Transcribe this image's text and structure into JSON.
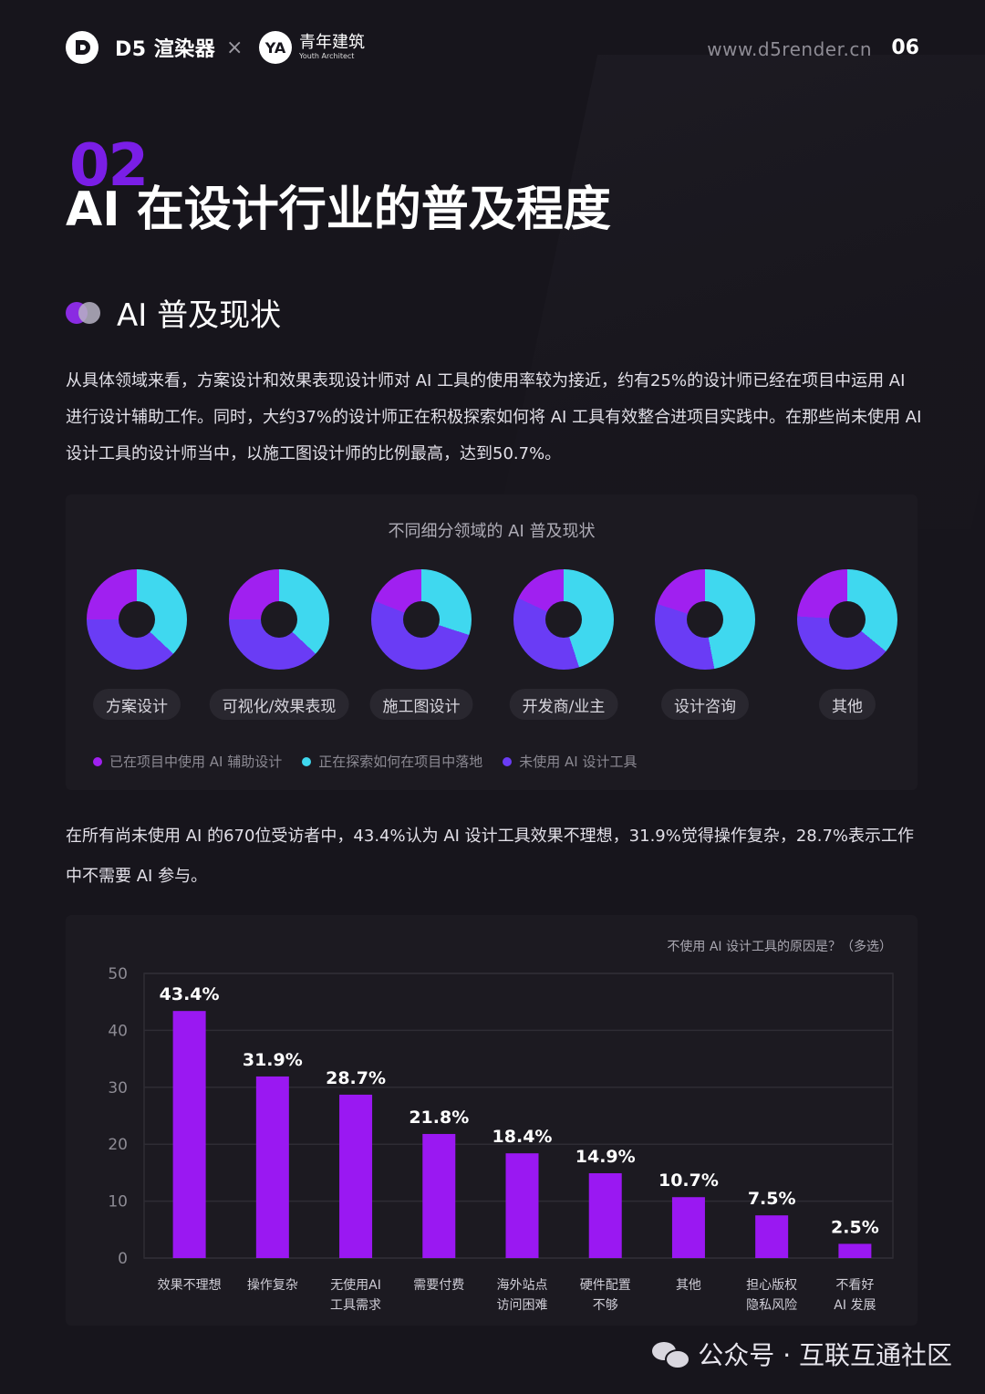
{
  "header": {
    "brand": "D5 渲染器",
    "cross": "×",
    "partner_mark": "YA",
    "partner_cn": "青年建筑",
    "partner_en": "Youth Architect",
    "website": "www.d5render.cn",
    "page": "06"
  },
  "section_number": "02",
  "title": "AI 在设计行业的普及程度",
  "subsection": "AI 普及现状",
  "paragraph1": "从具体领域来看，方案设计和效果表现设计师对 AI 工具的使用率较为接近，约有25%的设计师已经在项目中运用 AI 进行设计辅助工作。同时，大约37%的设计师正在积极探索如何将 AI 工具有效整合进项目实践中。在那些尚未使用 AI 设计工具的设计师当中，以施工图设计师的比例最高，达到50.7%。",
  "donut_panel": {
    "title": "不同细分领域的 AI 普及现状",
    "categories": [
      "方案设计",
      "可视化/效果表现",
      "施工图设计",
      "开发商/业主",
      "设计咨询",
      "其他"
    ],
    "legend": [
      {
        "label": "已在项目中使用 AI 辅助设计",
        "color": "#a020f0"
      },
      {
        "label": "正在探索如何在项目中落地",
        "color": "#3fd8ef"
      },
      {
        "label": "未使用 AI 设计工具",
        "color": "#6a3cf5"
      }
    ]
  },
  "paragraph2": "在所有尚未使用 AI 的670位受访者中，43.4%认为 AI 设计工具效果不理想，31.9%觉得操作复杂，28.7%表示工作中不需要 AI 参与。",
  "footer": {
    "text": "公众号 · 互联互通社区"
  },
  "chart_data": [
    {
      "type": "pie",
      "title": "不同细分领域的 AI 普及现状",
      "series_names": [
        "已在项目中使用 AI 辅助设计",
        "正在探索如何在项目中落地",
        "未使用 AI 设计工具"
      ],
      "series_colors": [
        "#a020f0",
        "#3fd8ef",
        "#6a3cf5"
      ],
      "charts": [
        {
          "category": "方案设计",
          "values": [
            25,
            37,
            38
          ]
        },
        {
          "category": "可视化/效果表现",
          "values": [
            25,
            37,
            38
          ]
        },
        {
          "category": "施工图设计",
          "values": [
            19,
            30,
            51
          ]
        },
        {
          "category": "开发商/业主",
          "values": [
            18,
            45,
            37
          ]
        },
        {
          "category": "设计咨询",
          "values": [
            20,
            47,
            33
          ]
        },
        {
          "category": "其他",
          "values": [
            24,
            36,
            40
          ]
        }
      ]
    },
    {
      "type": "bar",
      "title": "不使用 AI 设计工具的原因是？（多选）",
      "categories": [
        "效果不理想",
        "操作复杂",
        "无使用AI\n工具需求",
        "需要付费",
        "海外站点\n访问困难",
        "硬件配置\n不够",
        "其他",
        "担心版权\n隐私风险",
        "不看好\nAI 发展"
      ],
      "values": [
        43.4,
        31.9,
        28.7,
        21.8,
        18.4,
        14.9,
        10.7,
        7.5,
        2.5
      ],
      "value_labels": [
        "43.4%",
        "31.9%",
        "28.7%",
        "21.8%",
        "18.4%",
        "14.9%",
        "10.7%",
        "7.5%",
        "2.5%"
      ],
      "yticks": [
        0,
        10,
        20,
        30,
        40,
        50
      ],
      "ylim": [
        0,
        50
      ],
      "bar_color": "#9a18f2",
      "grid": true
    }
  ]
}
